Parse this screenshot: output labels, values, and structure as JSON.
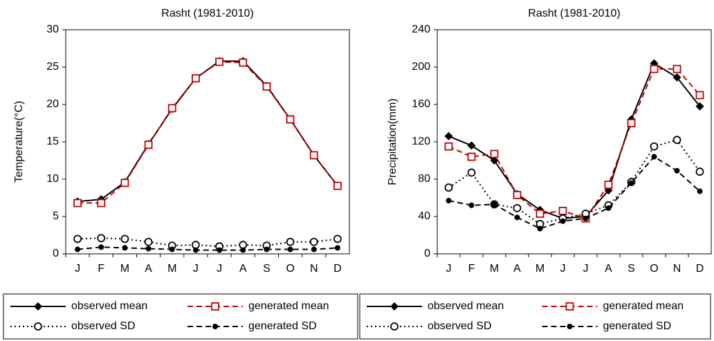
{
  "chart_data": [
    {
      "type": "line",
      "title": "Rasht (1981-2010)",
      "y_label": "Temperature(°C)",
      "categories": [
        "J",
        "F",
        "M",
        "A",
        "M",
        "J",
        "J",
        "A",
        "S",
        "O",
        "N",
        "D"
      ],
      "ylim": [
        0,
        30
      ],
      "yticks": [
        0,
        5,
        10,
        15,
        20,
        25,
        30
      ],
      "grid": false,
      "series": [
        {
          "name": "observed mean",
          "color": "#000000",
          "dash": "solid",
          "marker": "diamond",
          "values": [
            7.0,
            7.3,
            9.6,
            14.7,
            19.4,
            23.5,
            25.8,
            25.8,
            22.5,
            18.0,
            13.2,
            9.1
          ]
        },
        {
          "name": "generated mean",
          "color": "#c00000",
          "dash": "dashed",
          "marker": "open-square",
          "values": [
            6.8,
            6.8,
            9.5,
            14.6,
            19.5,
            23.5,
            25.7,
            25.6,
            22.4,
            18.0,
            13.2,
            9.1
          ]
        },
        {
          "name": "observed SD",
          "color": "#000000",
          "dash": "dotted",
          "marker": "open-circle",
          "values": [
            2.0,
            2.1,
            2.0,
            1.6,
            1.1,
            1.2,
            1.0,
            1.2,
            1.1,
            1.6,
            1.6,
            2.0
          ]
        },
        {
          "name": "generated SD",
          "color": "#000000",
          "dash": "dashed",
          "marker": "dot",
          "values": [
            0.6,
            0.9,
            0.8,
            0.7,
            0.6,
            0.5,
            0.5,
            0.5,
            0.6,
            0.6,
            0.6,
            0.8
          ]
        }
      ]
    },
    {
      "type": "line",
      "title": "Rasht (1981-2010)",
      "y_label": "Precipitation(mm)",
      "categories": [
        "J",
        "F",
        "M",
        "A",
        "M",
        "J",
        "J",
        "A",
        "S",
        "O",
        "N",
        "D"
      ],
      "ylim": [
        0,
        240
      ],
      "yticks": [
        0,
        40,
        80,
        120,
        160,
        200,
        240
      ],
      "grid": false,
      "series": [
        {
          "name": "observed mean",
          "color": "#000000",
          "dash": "solid",
          "marker": "diamond",
          "values": [
            126,
            116,
            100,
            64,
            47,
            38,
            40,
            68,
            144,
            204,
            189,
            158
          ]
        },
        {
          "name": "generated mean",
          "color": "#c00000",
          "dash": "dashed",
          "marker": "open-square",
          "values": [
            115,
            104,
            107,
            63,
            43,
            46,
            38,
            74,
            140,
            198,
            198,
            170
          ]
        },
        {
          "name": "observed SD",
          "color": "#000000",
          "dash": "dotted",
          "marker": "open-circle",
          "values": [
            71,
            87,
            53,
            49,
            32,
            38,
            43,
            52,
            77,
            115,
            122,
            88
          ]
        },
        {
          "name": "generated SD",
          "color": "#000000",
          "dash": "dashed",
          "marker": "dot",
          "values": [
            57,
            52,
            53,
            39,
            27,
            35,
            38,
            49,
            76,
            104,
            89,
            67
          ]
        }
      ]
    }
  ]
}
